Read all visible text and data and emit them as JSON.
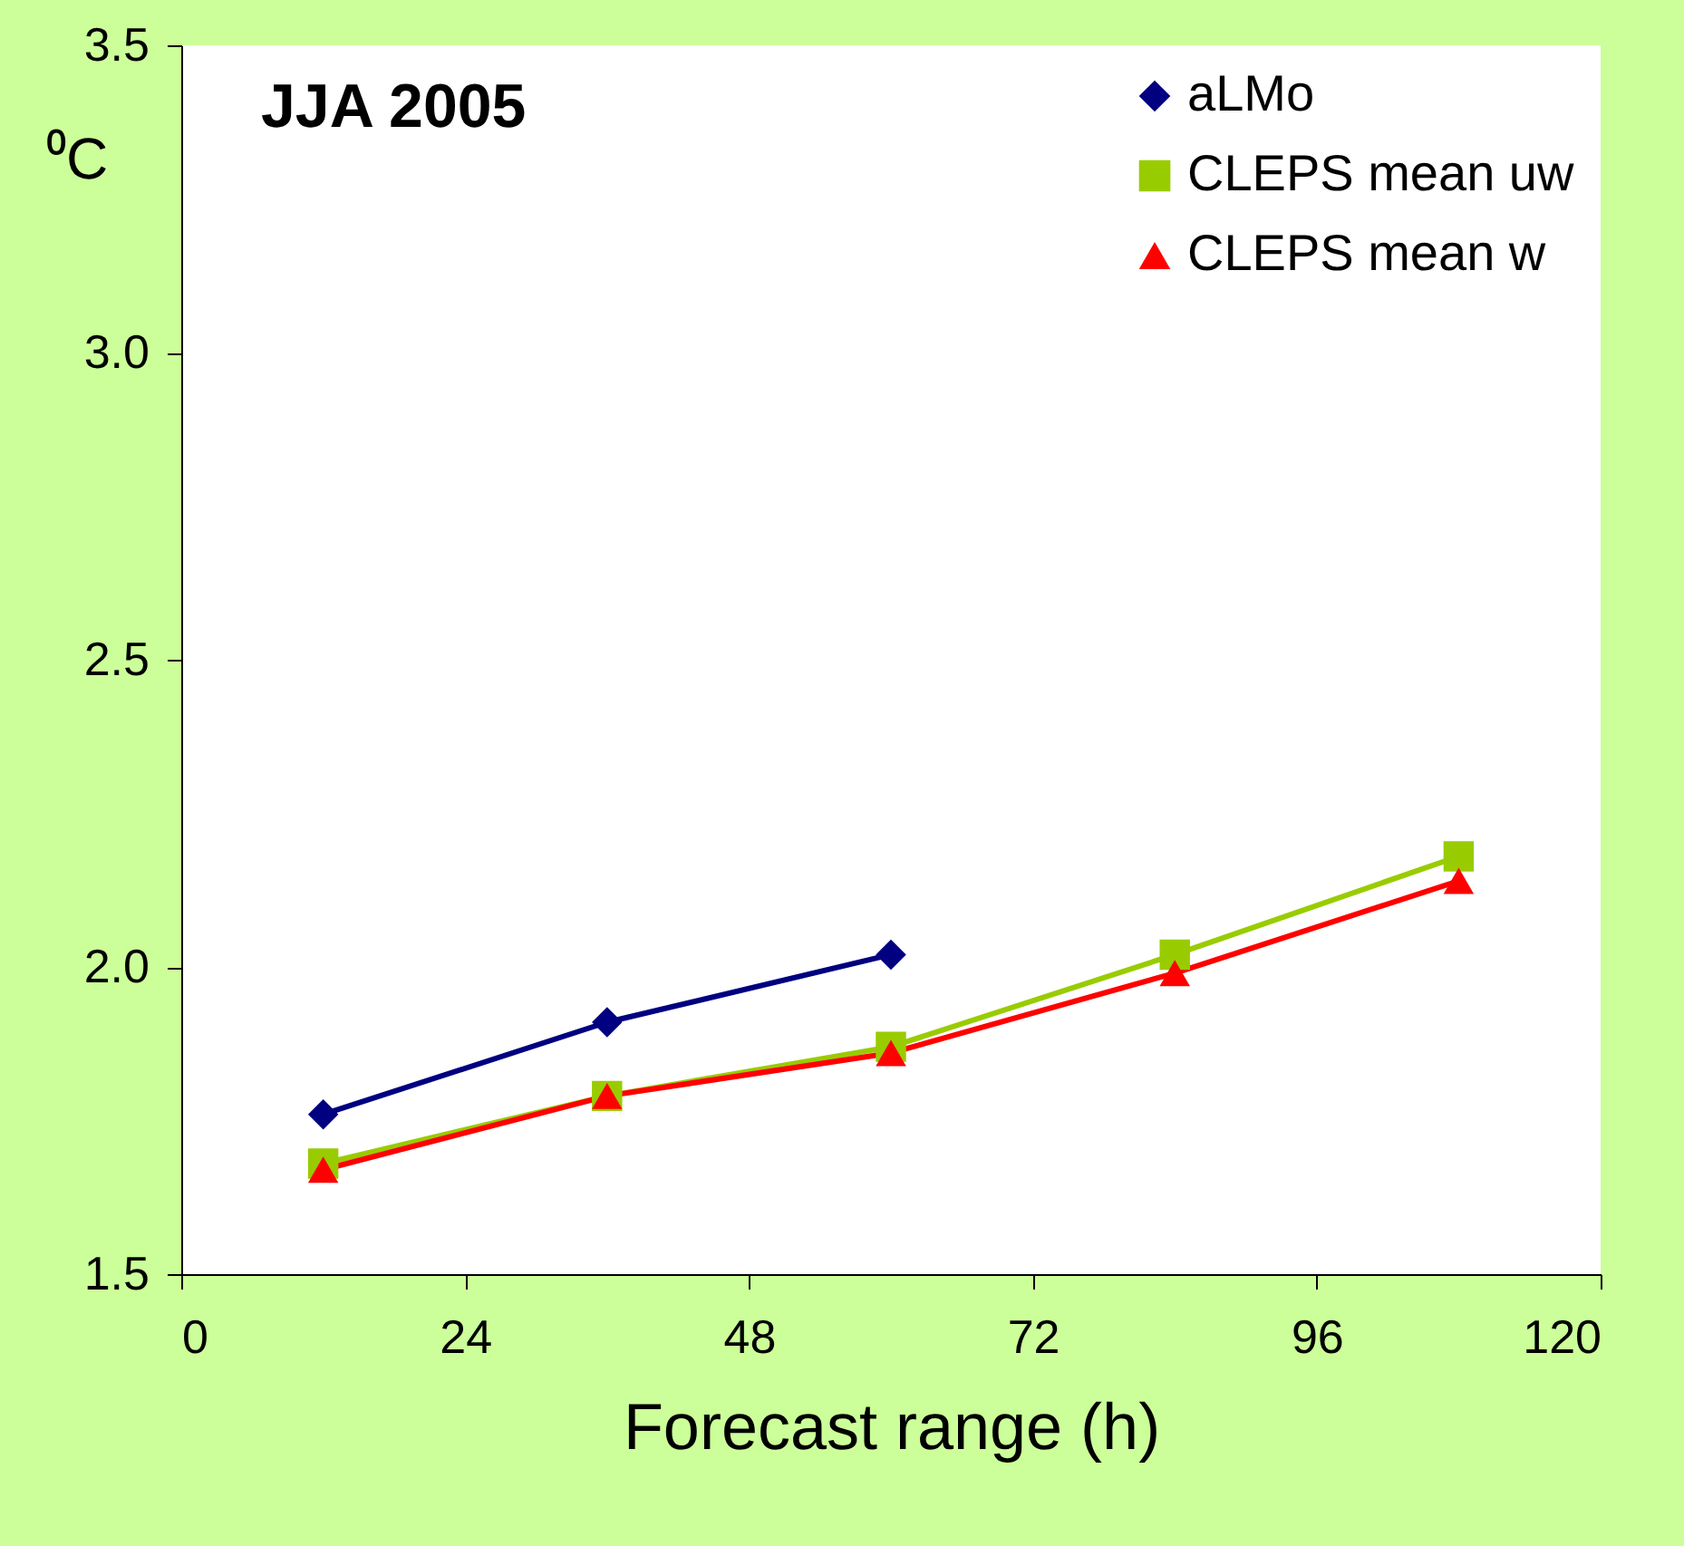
{
  "chart_data": {
    "type": "line",
    "xlabel": "Forecast range (h)",
    "ylabel": "⁰C",
    "annotations": [
      "JJA 2005"
    ],
    "xlim": [
      0,
      120
    ],
    "xticks": [
      0,
      24,
      48,
      72,
      96,
      120
    ],
    "ylim": [
      1.5,
      3.5
    ],
    "yticks": [
      {
        "value": 1.5,
        "label": "1.5"
      },
      {
        "value": 2.0,
        "label": "2.0"
      },
      {
        "value": 2.5,
        "label": "2.5"
      },
      {
        "value": 3.0,
        "label": "3.0"
      },
      {
        "value": 3.5,
        "label": "3.5"
      }
    ],
    "grid": false,
    "legend": "top right",
    "line_style": "solid",
    "series": [
      {
        "name": "aLMo",
        "color": "#000080",
        "marker": "diamond",
        "x": [
          12,
          36,
          60
        ],
        "values": [
          1.76,
          1.91,
          2.02
        ]
      },
      {
        "name": "CLEPS mean uw",
        "color": "#99cc00",
        "marker": "square",
        "x": [
          12,
          36,
          60,
          84,
          108
        ],
        "values": [
          1.68,
          1.79,
          1.87,
          2.02,
          2.18
        ]
      },
      {
        "name": "CLEPS mean w",
        "color": "#ff0000",
        "marker": "triangle",
        "x": [
          12,
          36,
          60,
          84,
          108
        ],
        "values": [
          1.67,
          1.79,
          1.86,
          1.99,
          2.14
        ]
      }
    ]
  }
}
